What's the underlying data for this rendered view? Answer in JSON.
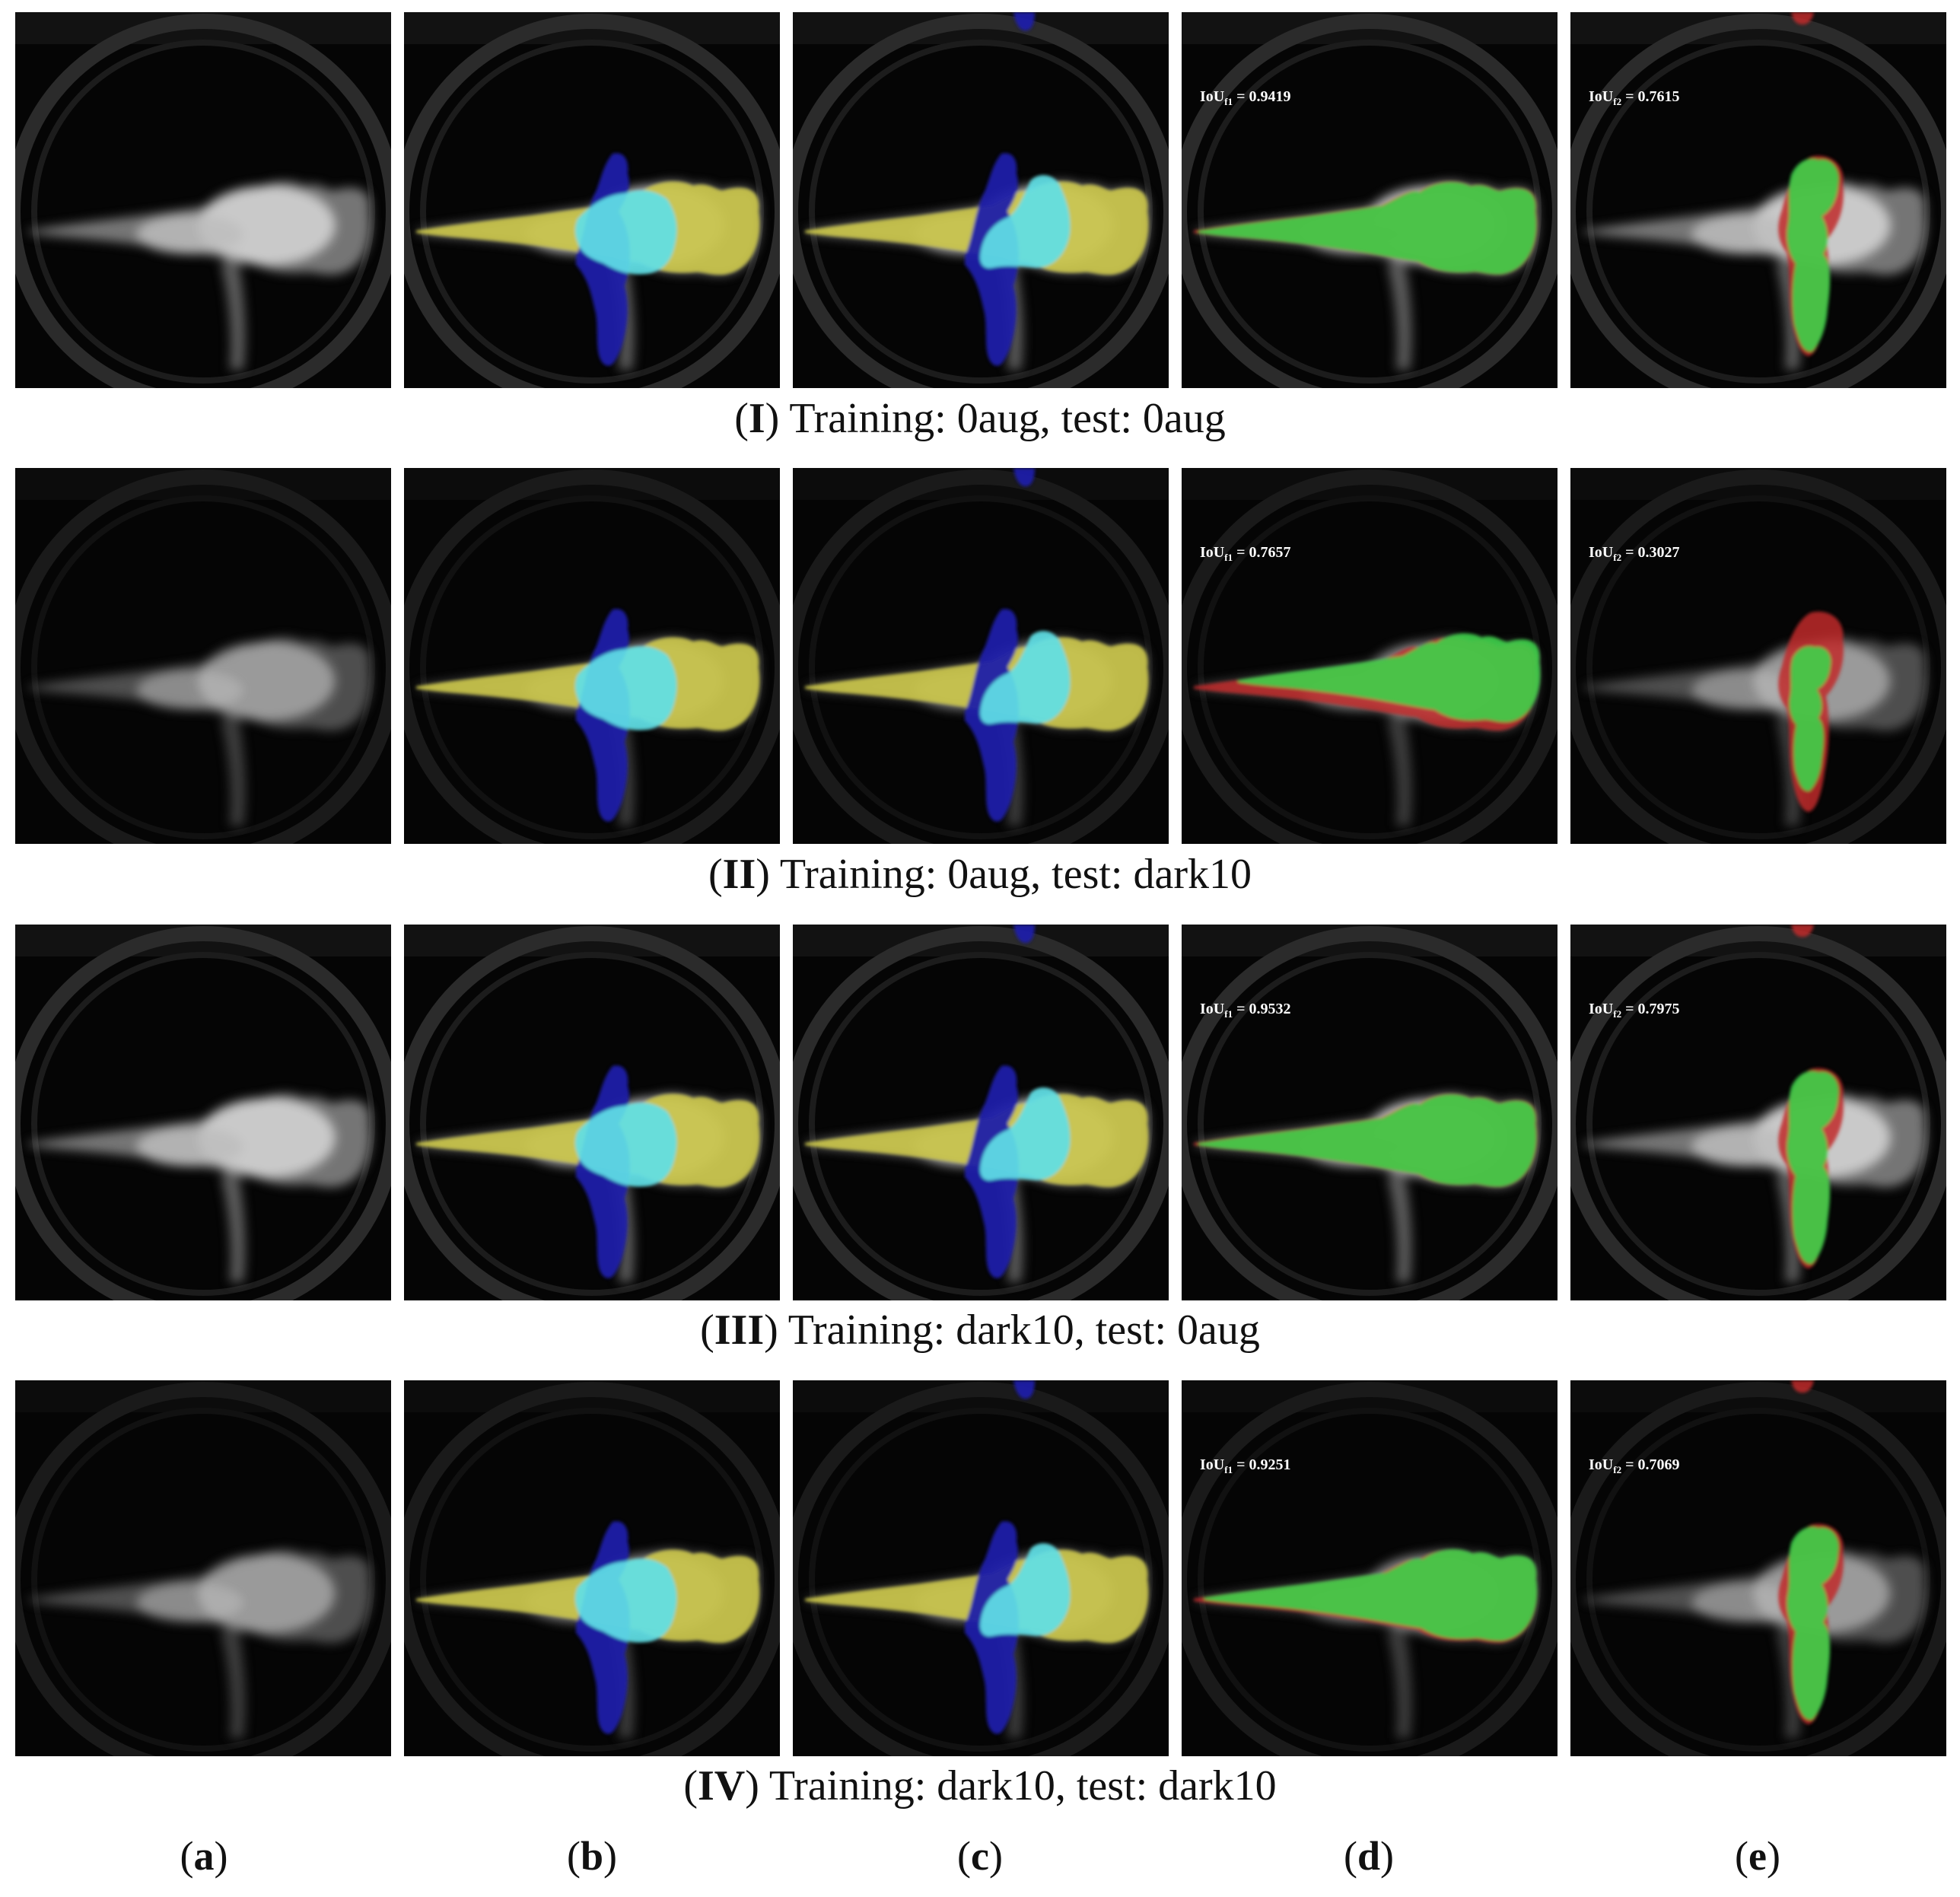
{
  "rows": [
    {
      "numeral": "I",
      "caption": "Training: 0aug, test: 0aug",
      "iou_f1": "0.9419",
      "iou_f2": "0.7615",
      "dark": false,
      "variant": "good"
    },
    {
      "numeral": "II",
      "caption": "Training: 0aug, test: dark10",
      "iou_f1": "0.7657",
      "iou_f2": "0.3027",
      "dark": true,
      "variant": "poor"
    },
    {
      "numeral": "III",
      "caption": "Training: dark10, test: 0aug",
      "iou_f1": "0.9532",
      "iou_f2": "0.7975",
      "dark": false,
      "variant": "good"
    },
    {
      "numeral": "IV",
      "caption": "Training: dark10, test: dark10",
      "iou_f1": "0.9251",
      "iou_f2": "0.7069",
      "dark": true,
      "variant": "mid"
    }
  ],
  "iou_prefix": "IoU",
  "iou_sub_f1": "f1",
  "iou_sub_f2": "f2",
  "iou_equals": " = ",
  "column_labels": [
    "a",
    "b",
    "c",
    "d",
    "e"
  ],
  "colors": {
    "yellow": "#c9c44a",
    "cyan": "#5fe0e6",
    "blue": "#1c1ca8",
    "green": "#3ed24a",
    "red": "#c0282c"
  }
}
